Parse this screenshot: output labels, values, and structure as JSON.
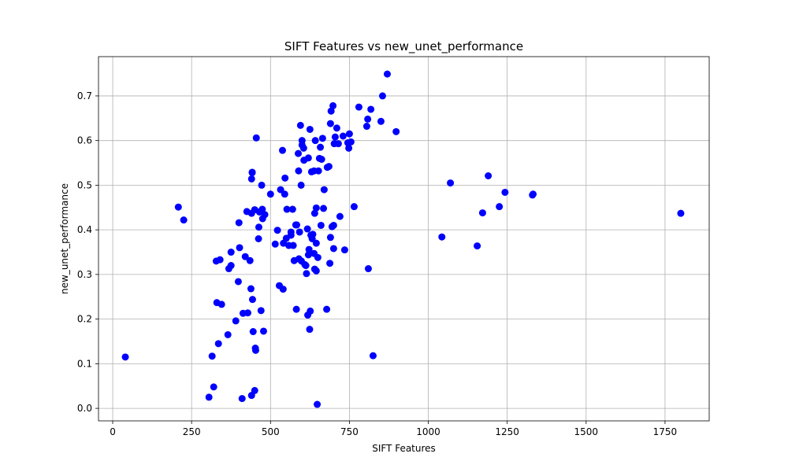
{
  "chart_data": {
    "type": "scatter",
    "title": "SIFT Features vs new_unet_performance",
    "xlabel": "SIFT Features",
    "ylabel": "new_unet_performance",
    "xlim": [
      -45,
      1890
    ],
    "ylim": [
      -0.028,
      0.788
    ],
    "xticks": [
      0,
      250,
      500,
      750,
      1000,
      1250,
      1500,
      1750
    ],
    "yticks": [
      0.0,
      0.1,
      0.2,
      0.3,
      0.4,
      0.5,
      0.6,
      0.7
    ],
    "grid": true,
    "marker_color": "#0000ff",
    "points": [
      [
        40,
        0.115
      ],
      [
        208,
        0.451
      ],
      [
        225,
        0.422
      ],
      [
        305,
        0.025
      ],
      [
        315,
        0.117
      ],
      [
        320,
        0.048
      ],
      [
        328,
        0.33
      ],
      [
        330,
        0.237
      ],
      [
        335,
        0.145
      ],
      [
        340,
        0.333
      ],
      [
        345,
        0.233
      ],
      [
        365,
        0.165
      ],
      [
        368,
        0.313
      ],
      [
        375,
        0.32
      ],
      [
        375,
        0.35
      ],
      [
        390,
        0.196
      ],
      [
        398,
        0.284
      ],
      [
        400,
        0.416
      ],
      [
        402,
        0.36
      ],
      [
        410,
        0.022
      ],
      [
        413,
        0.213
      ],
      [
        420,
        0.34
      ],
      [
        425,
        0.441
      ],
      [
        428,
        0.214
      ],
      [
        435,
        0.331
      ],
      [
        438,
        0.268
      ],
      [
        440,
        0.029
      ],
      [
        440,
        0.437
      ],
      [
        440,
        0.514
      ],
      [
        442,
        0.528
      ],
      [
        442,
        0.529
      ],
      [
        443,
        0.244
      ],
      [
        445,
        0.172
      ],
      [
        450,
        0.04
      ],
      [
        450,
        0.445
      ],
      [
        452,
        0.135
      ],
      [
        453,
        0.13
      ],
      [
        455,
        0.606
      ],
      [
        462,
        0.38
      ],
      [
        463,
        0.406
      ],
      [
        465,
        0.44
      ],
      [
        470,
        0.219
      ],
      [
        472,
        0.5
      ],
      [
        474,
        0.446
      ],
      [
        475,
        0.425
      ],
      [
        478,
        0.173
      ],
      [
        482,
        0.434
      ],
      [
        500,
        0.48
      ],
      [
        515,
        0.368
      ],
      [
        522,
        0.399
      ],
      [
        528,
        0.275
      ],
      [
        532,
        0.49
      ],
      [
        538,
        0.578
      ],
      [
        540,
        0.267
      ],
      [
        541,
        0.37
      ],
      [
        545,
        0.48
      ],
      [
        546,
        0.516
      ],
      [
        550,
        0.381
      ],
      [
        552,
        0.446
      ],
      [
        558,
        0.365
      ],
      [
        565,
        0.395
      ],
      [
        565,
        0.388
      ],
      [
        570,
        0.446
      ],
      [
        572,
        0.365
      ],
      [
        575,
        0.331
      ],
      [
        580,
        0.411
      ],
      [
        582,
        0.222
      ],
      [
        583,
        0.411
      ],
      [
        588,
        0.571
      ],
      [
        589,
        0.532
      ],
      [
        590,
        0.335
      ],
      [
        592,
        0.395
      ],
      [
        595,
        0.634
      ],
      [
        597,
        0.5
      ],
      [
        598,
        0.33
      ],
      [
        600,
        0.59
      ],
      [
        600,
        0.6
      ],
      [
        605,
        0.583
      ],
      [
        606,
        0.556
      ],
      [
        609,
        0.322
      ],
      [
        612,
        0.32
      ],
      [
        614,
        0.302
      ],
      [
        617,
        0.402
      ],
      [
        618,
        0.209
      ],
      [
        620,
        0.344
      ],
      [
        620,
        0.561
      ],
      [
        622,
        0.356
      ],
      [
        624,
        0.177
      ],
      [
        625,
        0.625
      ],
      [
        626,
        0.218
      ],
      [
        628,
        0.388
      ],
      [
        630,
        0.53
      ],
      [
        632,
        0.38
      ],
      [
        634,
        0.39
      ],
      [
        638,
        0.532
      ],
      [
        638,
        0.347
      ],
      [
        640,
        0.312
      ],
      [
        640,
        0.437
      ],
      [
        642,
        0.6
      ],
      [
        645,
        0.308
      ],
      [
        645,
        0.37
      ],
      [
        645,
        0.449
      ],
      [
        648,
        0.009
      ],
      [
        650,
        0.338
      ],
      [
        652,
        0.532
      ],
      [
        655,
        0.56
      ],
      [
        658,
        0.585
      ],
      [
        660,
        0.41
      ],
      [
        662,
        0.558
      ],
      [
        665,
        0.605
      ],
      [
        668,
        0.448
      ],
      [
        670,
        0.49
      ],
      [
        678,
        0.222
      ],
      [
        680,
        0.54
      ],
      [
        685,
        0.542
      ],
      [
        688,
        0.325
      ],
      [
        690,
        0.383
      ],
      [
        690,
        0.638
      ],
      [
        692,
        0.666
      ],
      [
        695,
        0.407
      ],
      [
        698,
        0.678
      ],
      [
        700,
        0.358
      ],
      [
        700,
        0.41
      ],
      [
        702,
        0.593
      ],
      [
        705,
        0.608
      ],
      [
        710,
        0.628
      ],
      [
        715,
        0.593
      ],
      [
        720,
        0.43
      ],
      [
        730,
        0.61
      ],
      [
        735,
        0.355
      ],
      [
        745,
        0.595
      ],
      [
        748,
        0.583
      ],
      [
        750,
        0.615
      ],
      [
        755,
        0.597
      ],
      [
        765,
        0.452
      ],
      [
        780,
        0.675
      ],
      [
        805,
        0.632
      ],
      [
        808,
        0.648
      ],
      [
        810,
        0.313
      ],
      [
        818,
        0.67
      ],
      [
        825,
        0.118
      ],
      [
        850,
        0.643
      ],
      [
        855,
        0.7
      ],
      [
        870,
        0.749
      ],
      [
        898,
        0.62
      ],
      [
        1043,
        0.384
      ],
      [
        1070,
        0.505
      ],
      [
        1155,
        0.364
      ],
      [
        1172,
        0.438
      ],
      [
        1190,
        0.521
      ],
      [
        1225,
        0.452
      ],
      [
        1243,
        0.484
      ],
      [
        1330,
        0.478
      ],
      [
        1332,
        0.48
      ],
      [
        1800,
        0.437
      ]
    ]
  }
}
